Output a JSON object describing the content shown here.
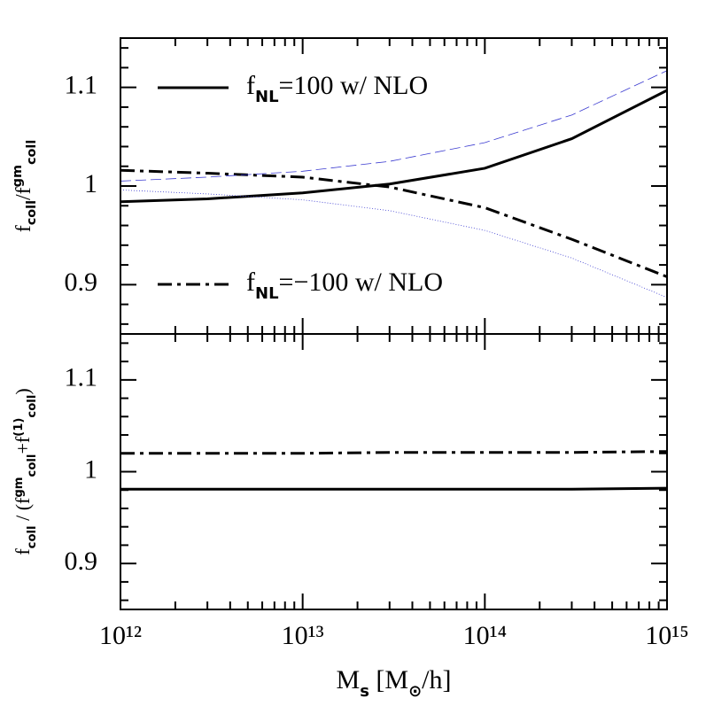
{
  "chart_data": [
    {
      "type": "line",
      "xscale": "log",
      "ylabel": [
        {
          "text": "f"
        },
        {
          "text": "coll",
          "shift": "sub"
        },
        {
          "text": "/f"
        },
        {
          "text": "gm",
          "shift": "super"
        },
        {
          "text": "coll",
          "shift": "sub"
        }
      ],
      "xlim": [
        1000000000000.0,
        1000000000000000.0
      ],
      "ylim": [
        0.85,
        1.15
      ],
      "xticks": [
        1000000000000.0,
        10000000000000.0,
        100000000000000.0,
        1000000000000000.0
      ],
      "xticks_minor": [
        2000000000000.0,
        3000000000000.0,
        4000000000000.0,
        5000000000000.0,
        6000000000000.0,
        7000000000000.0,
        8000000000000.0,
        9000000000000.0,
        20000000000000.0,
        30000000000000.0,
        40000000000000.0,
        50000000000000.0,
        60000000000000.0,
        70000000000000.0,
        80000000000000.0,
        90000000000000.0,
        200000000000000.0,
        300000000000000.0,
        400000000000000.0,
        500000000000000.0,
        600000000000000.0,
        700000000000000.0,
        800000000000000.0,
        900000000000000.0
      ],
      "yticks": [
        0.9,
        1,
        1.1
      ],
      "yticks_minor": [
        0.86,
        0.88,
        0.92,
        0.94,
        0.96,
        0.98,
        1.02,
        1.04,
        1.06,
        1.08,
        1.12,
        1.14
      ],
      "x": [
        1000000000000.0,
        3000000000000.0,
        10000000000000.0,
        30000000000000.0,
        100000000000000.0,
        300000000000000.0,
        1000000000000000.0
      ],
      "series": [
        {
          "name": [
            {
              "text": "f"
            },
            {
              "text": "NL",
              "shift": "sub"
            },
            {
              "text": "=100  w/ NLO"
            }
          ],
          "color": "#000000",
          "dash": "solid",
          "width": 3,
          "values": [
            0.984,
            0.987,
            0.993,
            1.002,
            1.018,
            1.048,
            1.097
          ]
        },
        {
          "name": [
            {
              "text": "f"
            },
            {
              "text": "NL",
              "shift": "sub"
            },
            {
              "text": "=−100  w/ NLO"
            }
          ],
          "color": "#000000",
          "dash": "dashdot",
          "width": 3,
          "values": [
            1.016,
            1.013,
            1.009,
            0.999,
            0.978,
            0.946,
            0.908
          ]
        },
        {
          "color": "#3a3ad0",
          "dash": "dashed",
          "width": 0.8,
          "values": [
            1.005,
            1.009,
            1.015,
            1.025,
            1.044,
            1.072,
            1.117
          ]
        },
        {
          "color": "#3a3ad0",
          "dash": "dotted",
          "width": 0.8,
          "values": [
            0.996,
            0.992,
            0.986,
            0.975,
            0.955,
            0.927,
            0.887
          ]
        }
      ]
    },
    {
      "type": "line",
      "xscale": "log",
      "ylabel": [
        {
          "text": "f"
        },
        {
          "text": "coll",
          "shift": "sub"
        },
        {
          "text": " / (f"
        },
        {
          "text": "gm",
          "shift": "super"
        },
        {
          "text": "coll",
          "shift": "sub"
        },
        {
          "text": "+f"
        },
        {
          "text": "(1)",
          "shift": "super"
        },
        {
          "text": "coll",
          "shift": "sub"
        },
        {
          "text": ")"
        }
      ],
      "xlabel": [
        {
          "text": "M"
        },
        {
          "text": "s",
          "shift": "sub"
        },
        {
          "text": " [M"
        },
        {
          "text": "⊙",
          "shift": "sub"
        },
        {
          "text": "/h]"
        }
      ],
      "xlim": [
        1000000000000.0,
        1000000000000000.0
      ],
      "ylim": [
        0.85,
        1.15
      ],
      "xticks": [
        {
          "value": 1000000000000.0,
          "label": "10¹²"
        },
        {
          "value": 10000000000000.0,
          "label": "10¹³"
        },
        {
          "value": 100000000000000.0,
          "label": "10¹⁴"
        },
        {
          "value": 1000000000000000.0,
          "label": "10¹⁵"
        }
      ],
      "xticks_minor": [
        2000000000000.0,
        3000000000000.0,
        4000000000000.0,
        5000000000000.0,
        6000000000000.0,
        7000000000000.0,
        8000000000000.0,
        9000000000000.0,
        20000000000000.0,
        30000000000000.0,
        40000000000000.0,
        50000000000000.0,
        60000000000000.0,
        70000000000000.0,
        80000000000000.0,
        90000000000000.0,
        200000000000000.0,
        300000000000000.0,
        400000000000000.0,
        500000000000000.0,
        600000000000000.0,
        700000000000000.0,
        800000000000000.0,
        900000000000000.0
      ],
      "yticks": [
        0.9,
        1,
        1.1
      ],
      "yticks_minor": [
        0.86,
        0.88,
        0.92,
        0.94,
        0.96,
        0.98,
        1.02,
        1.04,
        1.06,
        1.08,
        1.12,
        1.14
      ],
      "x": [
        1000000000000.0,
        3000000000000.0,
        10000000000000.0,
        30000000000000.0,
        100000000000000.0,
        300000000000000.0,
        1000000000000000.0
      ],
      "series": [
        {
          "color": "#000000",
          "dash": "solid",
          "width": 3,
          "values": [
            0.981,
            0.981,
            0.981,
            0.981,
            0.981,
            0.981,
            0.982
          ]
        },
        {
          "color": "#000000",
          "dash": "dashdot",
          "width": 3,
          "values": [
            1.02,
            1.02,
            1.02,
            1.021,
            1.021,
            1.021,
            1.022
          ]
        }
      ]
    }
  ]
}
